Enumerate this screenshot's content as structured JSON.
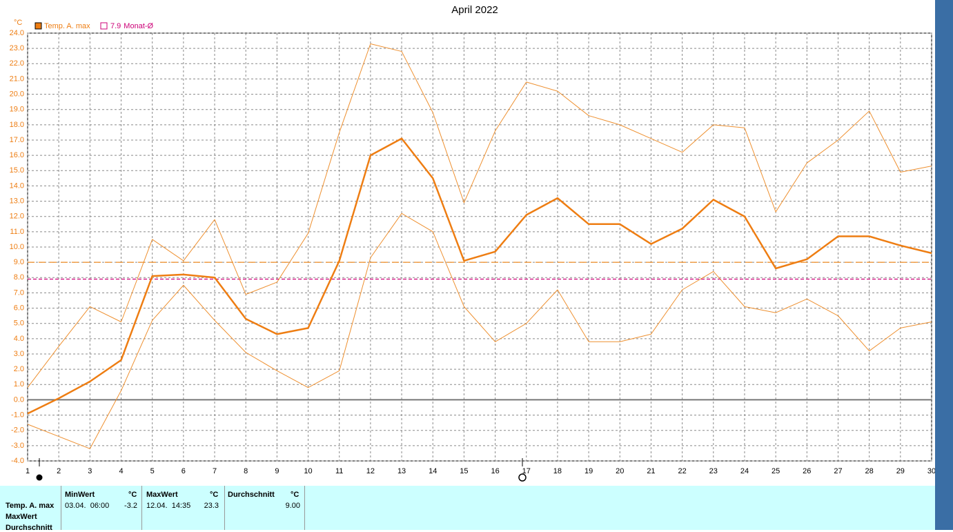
{
  "chart_data": {
    "type": "line",
    "title": "April 2022",
    "y_unit": "°C",
    "x": [
      1,
      2,
      3,
      4,
      5,
      6,
      7,
      8,
      9,
      10,
      11,
      12,
      13,
      14,
      15,
      16,
      17,
      18,
      19,
      20,
      21,
      22,
      23,
      24,
      25,
      26,
      27,
      28,
      29,
      30
    ],
    "xlim": [
      1,
      30
    ],
    "xticks": [
      1,
      2,
      3,
      4,
      5,
      6,
      7,
      8,
      9,
      10,
      11,
      12,
      13,
      14,
      15,
      16,
      17,
      18,
      19,
      20,
      21,
      22,
      23,
      24,
      25,
      26,
      27,
      28,
      29,
      30
    ],
    "ylim": [
      -4,
      24
    ],
    "yticks": [
      {
        "value": -4,
        "label": "-4.0"
      },
      {
        "value": -3,
        "label": "-3.0"
      },
      {
        "value": -2,
        "label": "-2.0"
      },
      {
        "value": -1,
        "label": "-1.0"
      },
      {
        "value": 0,
        "label": "0.0"
      },
      {
        "value": 1,
        "label": "1.0"
      },
      {
        "value": 2,
        "label": "2.0"
      },
      {
        "value": 3,
        "label": "3.0"
      },
      {
        "value": 4,
        "label": "4.0"
      },
      {
        "value": 5,
        "label": "5.0"
      },
      {
        "value": 6,
        "label": "6.0"
      },
      {
        "value": 7,
        "label": "7.0"
      },
      {
        "value": 8,
        "label": "8.0"
      },
      {
        "value": 9,
        "label": "9.0"
      },
      {
        "value": 10,
        "label": "10.0"
      },
      {
        "value": 11,
        "label": "11.0"
      },
      {
        "value": 12,
        "label": "12.0"
      },
      {
        "value": 13,
        "label": "13.0"
      },
      {
        "value": 14,
        "label": "14.0"
      },
      {
        "value": 15,
        "label": "15.0"
      },
      {
        "value": 16,
        "label": "16.0"
      },
      {
        "value": 17,
        "label": "17.0"
      },
      {
        "value": 18,
        "label": "18.0"
      },
      {
        "value": 19,
        "label": "19.0"
      },
      {
        "value": 20,
        "label": "20.0"
      },
      {
        "value": 21,
        "label": "21.0"
      },
      {
        "value": 22,
        "label": "22.0"
      },
      {
        "value": 23,
        "label": "23.0"
      },
      {
        "value": 24,
        "label": "24.0"
      }
    ],
    "grid": true,
    "series": [
      {
        "name": "Temp. A. max",
        "color": "#ee7d12",
        "values": [
          -0.9,
          0.1,
          1.2,
          2.6,
          8.1,
          8.2,
          8.0,
          5.3,
          4.3,
          4.7,
          9.1,
          16.0,
          17.1,
          14.5,
          9.1,
          9.7,
          12.1,
          13.2,
          11.5,
          11.5,
          10.2,
          11.2,
          13.1,
          12.0,
          8.6,
          9.2,
          10.7,
          10.7,
          10.1,
          9.6
        ]
      },
      {
        "color": "#ee9030",
        "values": [
          0.8,
          3.5,
          6.1,
          5.1,
          10.5,
          9.1,
          11.8,
          6.9,
          7.7,
          10.9,
          17.5,
          23.3,
          22.8,
          18.8,
          12.9,
          17.6,
          20.8,
          20.2,
          18.6,
          18.0,
          17.1,
          16.2,
          18.0,
          17.8,
          12.3,
          15.5,
          17.0,
          18.9,
          14.9,
          15.3
        ]
      },
      {
        "color": "#ee9030",
        "values": [
          -1.6,
          -2.4,
          -3.2,
          0.6,
          5.2,
          7.5,
          5.2,
          3.1,
          1.9,
          0.8,
          1.9,
          9.3,
          12.2,
          11.0,
          6.1,
          3.8,
          5.0,
          7.2,
          3.8,
          3.8,
          4.3,
          7.2,
          8.4,
          6.1,
          5.7,
          6.6,
          5.5,
          3.2,
          4.7,
          5.1
        ]
      }
    ],
    "reference_lines": [
      {
        "value": 9,
        "color": "#ee8a20"
      },
      {
        "value": 7.9,
        "label": "Monat-Ø",
        "color": "#cc0077"
      }
    ],
    "zero_line": true
  },
  "stats": {
    "columns": [
      {
        "header": "MinWert",
        "unit": "°C"
      },
      {
        "header": "MaxWert",
        "unit": "°C"
      },
      {
        "header": "Durchschnitt",
        "unit": "°C"
      }
    ],
    "row_labels": [
      "Temp. A. max",
      "MaxWert",
      "Durchschnitt"
    ],
    "min_time": "03.04.  06:00",
    "min": "-3.2",
    "max_time": "12.04.  14:35",
    "max": "23.3",
    "avg": "9.00"
  }
}
